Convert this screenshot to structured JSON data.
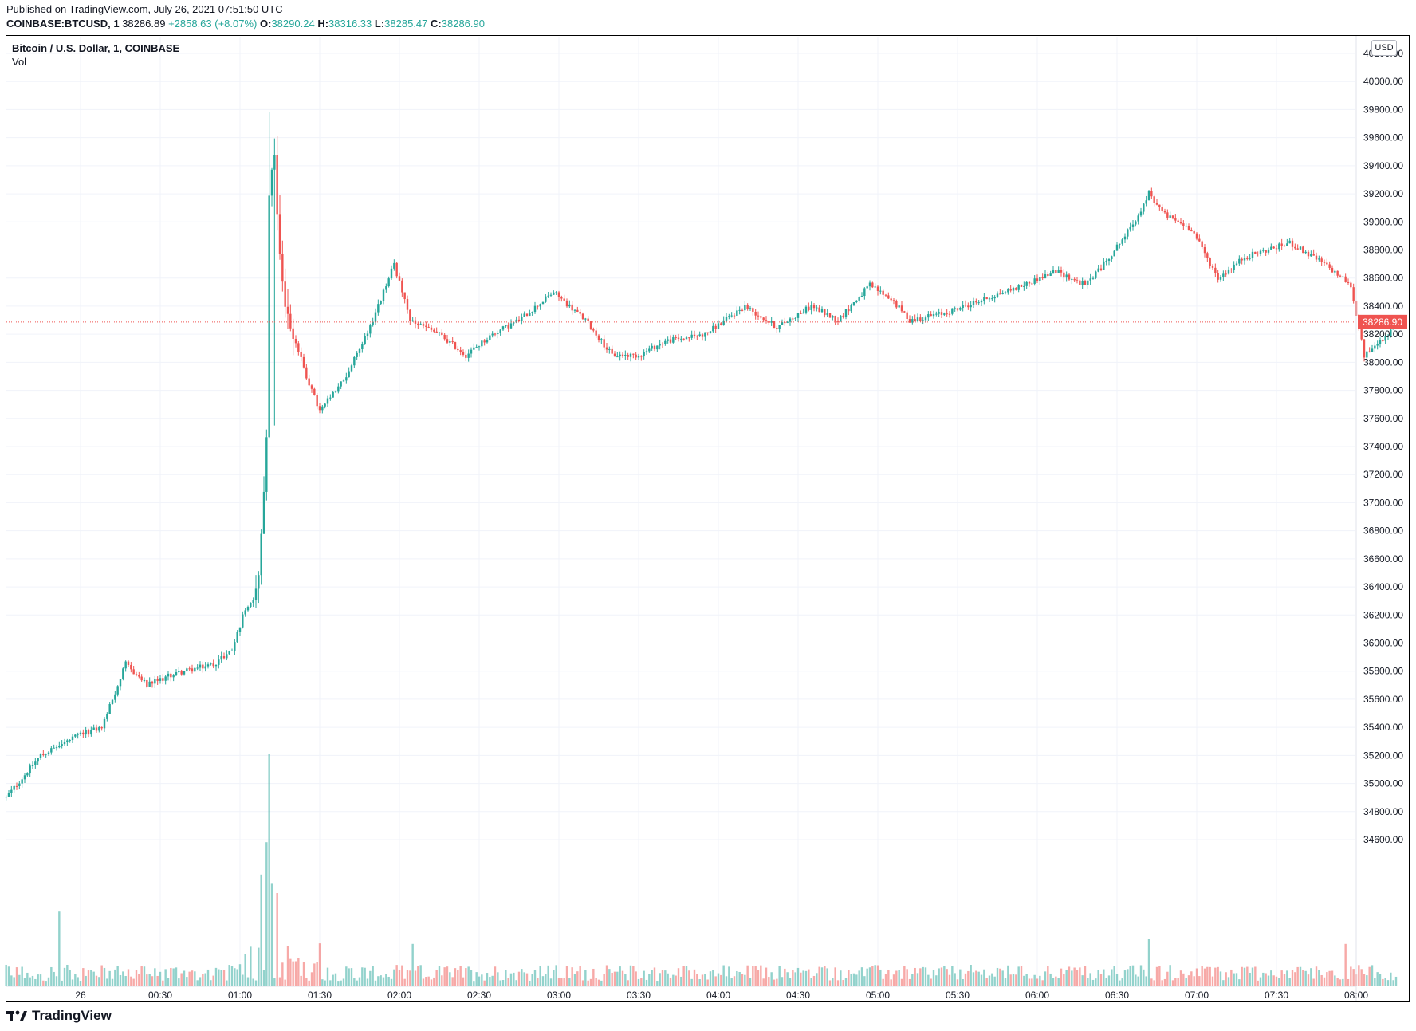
{
  "header": {
    "published": "Published on TradingView.com, July 26, 2021 07:51:50 UTC",
    "symbol": "COINBASE:BTCUSD, 1",
    "last": "38286.89",
    "change": "+2858.63 (+8.07%)",
    "o_label": "O:",
    "o_value": "38290.24",
    "h_label": "H:",
    "h_value": "38316.33",
    "l_label": "L:",
    "l_value": "38285.47",
    "c_label": "C:",
    "c_value": "38286.90"
  },
  "legend": {
    "title": "Bitcoin / U.S. Dollar, 1, COINBASE",
    "volume": "Vol"
  },
  "currency_badge": "USD",
  "price_label": "38286.90",
  "footer": {
    "brand": "TradingView"
  },
  "colors": {
    "up": "#26a69a",
    "down": "#ef5350",
    "grid": "#f0f3fa",
    "price_line": "#ef5350"
  },
  "chart_data": {
    "type": "candlestick",
    "interval": "1 minute",
    "x_tick_labels": [
      "26",
      "00:30",
      "01:00",
      "01:30",
      "02:00",
      "02:30",
      "03:00",
      "03:30",
      "04:00",
      "04:30",
      "05:00",
      "05:30",
      "06:00",
      "06:30",
      "07:00",
      "07:30",
      "08:00"
    ],
    "y_tick_labels": [
      "40200.00",
      "40000.00",
      "39800.00",
      "39600.00",
      "39400.00",
      "39200.00",
      "39000.00",
      "38800.00",
      "38600.00",
      "38400.00",
      "38200.00",
      "38000.00",
      "37800.00",
      "37600.00",
      "37400.00",
      "37200.00",
      "37000.00",
      "36800.00",
      "36600.00",
      "36400.00",
      "36200.00",
      "36000.00",
      "35800.00",
      "35600.00",
      "35400.00",
      "35200.00",
      "35000.00",
      "34800.00",
      "34600.00"
    ],
    "y_range": [
      34450,
      40250
    ],
    "x_range_minutes": [
      -28,
      500
    ],
    "last_price": 38286.9,
    "price_path": [
      [
        -28,
        34900
      ],
      [
        -15,
        35200
      ],
      [
        0,
        35350
      ],
      [
        8,
        35400
      ],
      [
        14,
        35700
      ],
      [
        17,
        35850
      ],
      [
        25,
        35700
      ],
      [
        35,
        35780
      ],
      [
        50,
        35850
      ],
      [
        57,
        35950
      ],
      [
        62,
        36250
      ],
      [
        66,
        36350
      ],
      [
        68,
        36750
      ],
      [
        70,
        37500
      ],
      [
        71,
        39200
      ],
      [
        73,
        39400
      ],
      [
        75,
        38800
      ],
      [
        77,
        38400
      ],
      [
        80,
        38200
      ],
      [
        85,
        37900
      ],
      [
        90,
        37650
      ],
      [
        100,
        37900
      ],
      [
        110,
        38300
      ],
      [
        118,
        38700
      ],
      [
        124,
        38300
      ],
      [
        135,
        38200
      ],
      [
        145,
        38050
      ],
      [
        155,
        38200
      ],
      [
        165,
        38300
      ],
      [
        178,
        38500
      ],
      [
        190,
        38300
      ],
      [
        200,
        38050
      ],
      [
        210,
        38050
      ],
      [
        220,
        38150
      ],
      [
        235,
        38200
      ],
      [
        250,
        38400
      ],
      [
        262,
        38250
      ],
      [
        275,
        38400
      ],
      [
        285,
        38300
      ],
      [
        297,
        38550
      ],
      [
        305,
        38450
      ],
      [
        312,
        38300
      ],
      [
        325,
        38350
      ],
      [
        340,
        38450
      ],
      [
        355,
        38550
      ],
      [
        367,
        38650
      ],
      [
        378,
        38550
      ],
      [
        385,
        38700
      ],
      [
        393,
        38900
      ],
      [
        398,
        39050
      ],
      [
        402,
        39200
      ],
      [
        408,
        39050
      ],
      [
        418,
        38950
      ],
      [
        428,
        38600
      ],
      [
        438,
        38750
      ],
      [
        455,
        38850
      ],
      [
        468,
        38700
      ],
      [
        478,
        38550
      ],
      [
        483,
        38050
      ],
      [
        490,
        38150
      ],
      [
        495,
        38287
      ]
    ],
    "volume_spikes": [
      [
        -8,
        0.32
      ],
      [
        68,
        0.48
      ],
      [
        70,
        0.62
      ],
      [
        71,
        1.0
      ],
      [
        72,
        0.44
      ],
      [
        74,
        0.4
      ],
      [
        125,
        0.18
      ],
      [
        402,
        0.2
      ],
      [
        476,
        0.18
      ]
    ]
  }
}
